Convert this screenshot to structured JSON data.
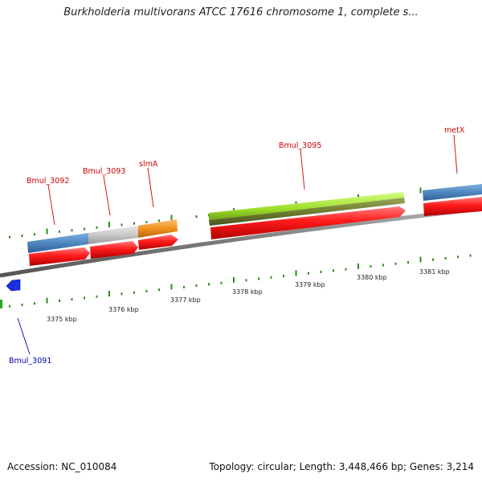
{
  "title": "Burkholderia multivorans ATCC 17616 chromosome 1, complete s...",
  "footer": {
    "accession": "Accession: NC_010084",
    "summary": "Topology: circular; Length: 3,448,466 bp; Genes: 3,214"
  },
  "colors": {
    "red_feature": "#ff1a1a",
    "blue_feature": "#4f86c0",
    "grey_feature": "#c8c8c8",
    "orange_feature": "#f0921e",
    "green_feature": "#9dde2b",
    "olive_feature": "#6f7d2e",
    "backbone": "#808080",
    "tick": "#2d8a1a",
    "label_red": "#cc0000",
    "label_blue": "#0000aa",
    "ruler_text": "#222222"
  },
  "ruler_labels": [
    "3375 kbp",
    "3376 kbp",
    "3377 kbp",
    "3378 kbp",
    "3379 kbp",
    "3380 kbp",
    "3381 kbp"
  ],
  "genes": [
    {
      "name": "Bmul_3091",
      "color": "label_blue"
    },
    {
      "name": "Bmul_3092",
      "color": "label_red"
    },
    {
      "name": "Bmul_3093",
      "color": "label_red"
    },
    {
      "name": "slmA",
      "color": "label_red"
    },
    {
      "name": "Bmul_3095",
      "color": "label_red"
    },
    {
      "name": "metX",
      "color": "label_red"
    }
  ]
}
